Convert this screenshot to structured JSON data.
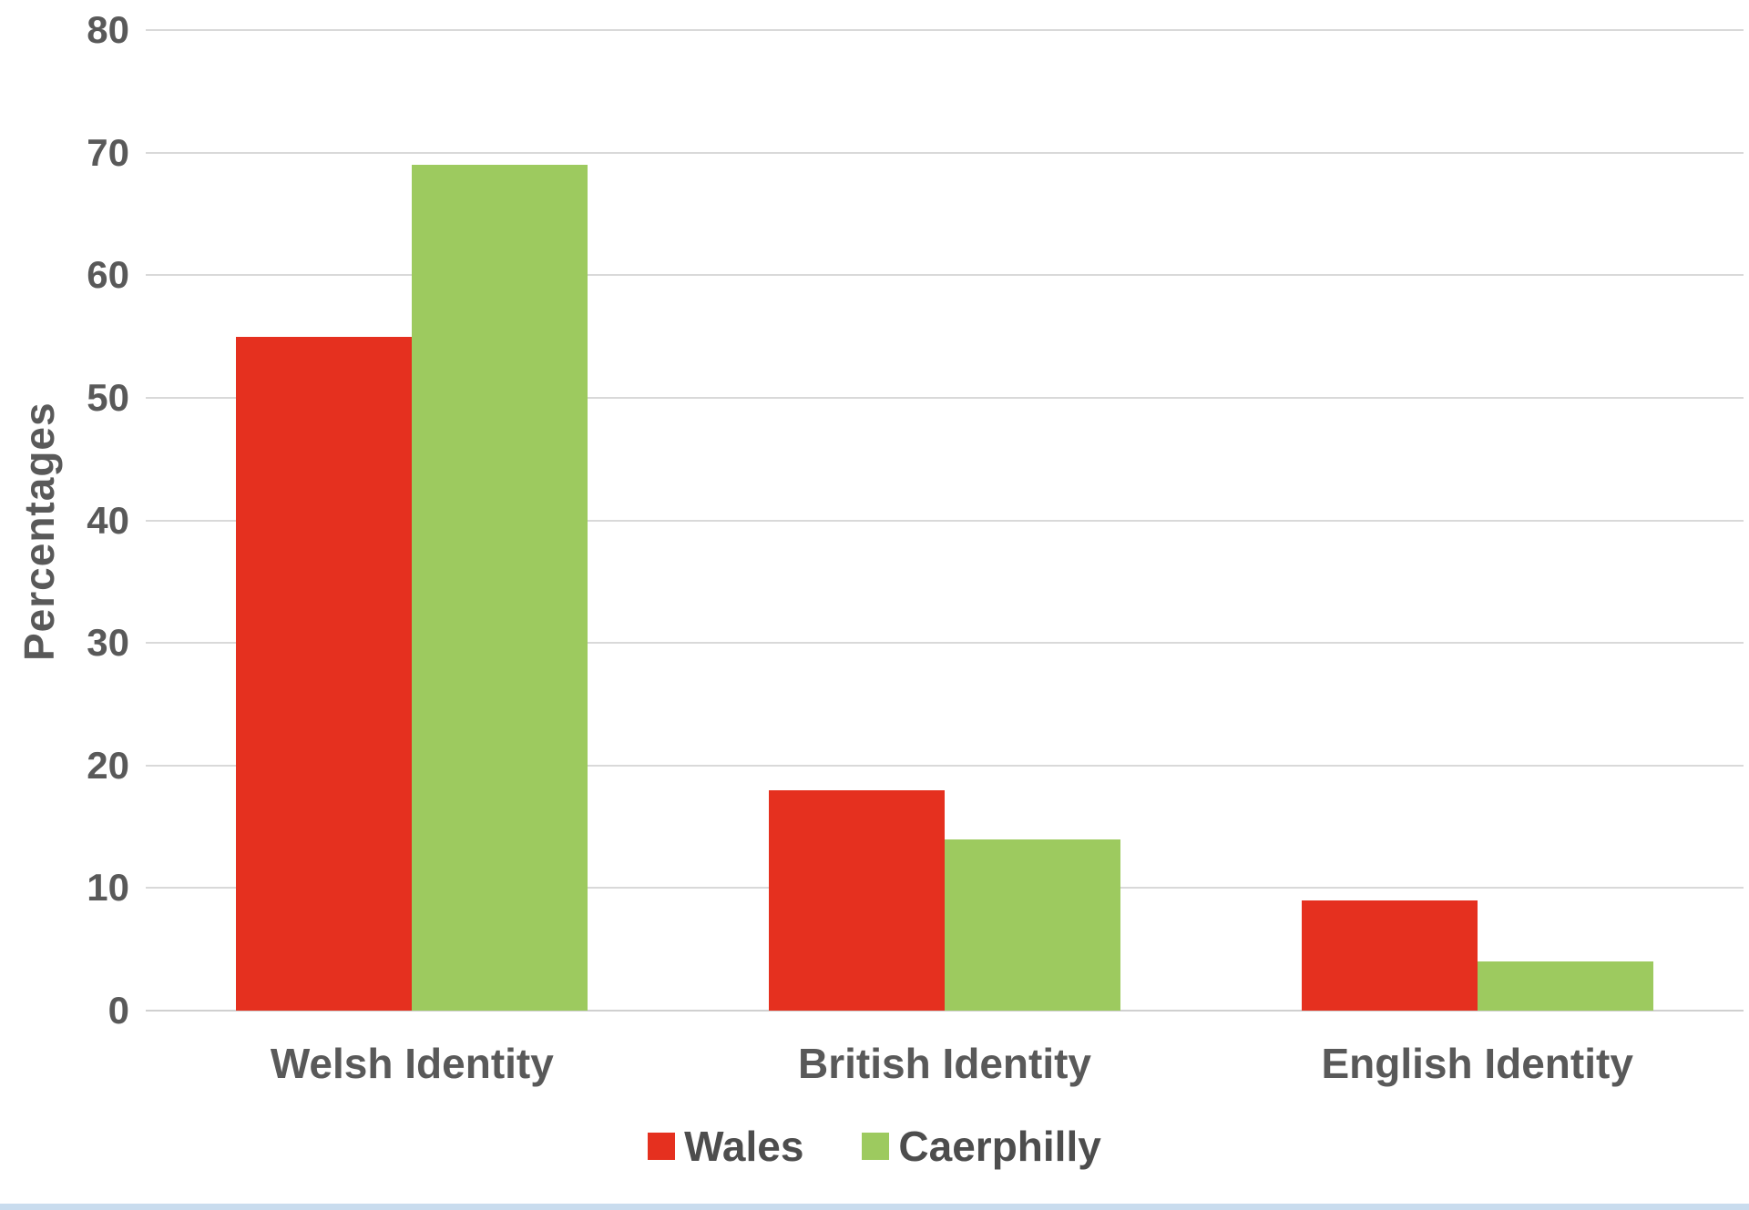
{
  "chart_data": {
    "type": "bar",
    "categories": [
      "Welsh Identity",
      "British Identity",
      "English Identity"
    ],
    "series": [
      {
        "name": "Wales",
        "color": "#e5301f",
        "values": [
          55,
          18,
          9
        ]
      },
      {
        "name": "Caerphilly",
        "color": "#9dca5f",
        "values": [
          69,
          14,
          4
        ]
      }
    ],
    "title": "",
    "xlabel": "",
    "ylabel": "Percentages",
    "ylim": [
      0,
      80
    ],
    "yticks": [
      0,
      10,
      20,
      30,
      40,
      50,
      60,
      70,
      80
    ],
    "grid": true,
    "legend_position": "bottom",
    "colors": {
      "tick_text": "#595959",
      "gridline": "#d9d9d9",
      "background": "#ffffff"
    }
  }
}
